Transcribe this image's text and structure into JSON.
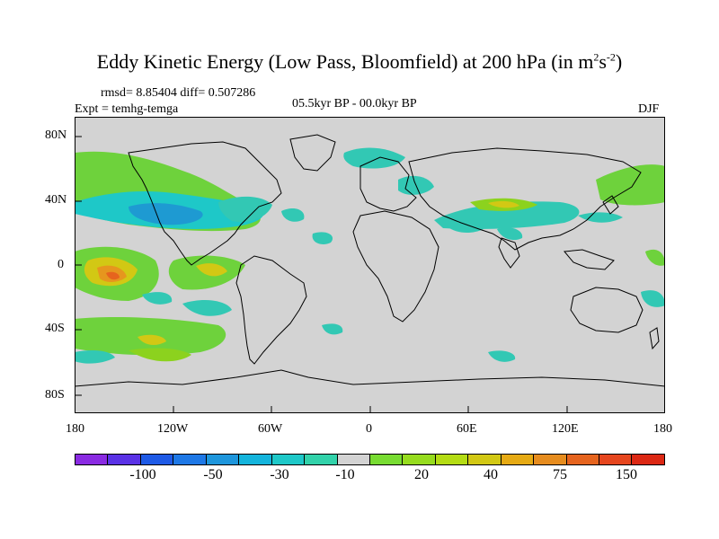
{
  "title": {
    "main": "Eddy Kinetic Energy (Low Pass, Bloomfield) at 200 hPa (in m",
    "sup1": "2",
    "mid": "s",
    "sup2": "-2",
    "end": ")"
  },
  "stats": "rmsd= 8.85404 diff= 0.507286",
  "expt": "Expt = temhg-temga",
  "period": "05.5kyr BP - 00.0kyr BP",
  "season": "DJF",
  "map": {
    "background_color": "#d3d3d3",
    "lat_labels": [
      "80N",
      "40N",
      "0",
      "40S",
      "80S"
    ],
    "lon_labels": [
      "180",
      "120W",
      "60W",
      "0",
      "60E",
      "120E",
      "180"
    ]
  },
  "colorbar": {
    "colors": [
      "#8a2be2",
      "#5a32e6",
      "#1e5ae6",
      "#1e78e6",
      "#1e96dc",
      "#14b4dc",
      "#1ec8c8",
      "#32d2aa",
      "#d3d3d3",
      "#78dc32",
      "#96dc1e",
      "#b4dc14",
      "#d2c814",
      "#e6aa14",
      "#e68c1e",
      "#e6641e",
      "#e6461e",
      "#dc2814"
    ],
    "labels": [
      "-100",
      "-50",
      "-30",
      "-10",
      "20",
      "40",
      "75",
      "150"
    ]
  },
  "palette": {
    "green_light": "#6ed23c",
    "green_mid": "#8cd21e",
    "cyan_light": "#32c8b4",
    "cyan_mid": "#1ec8c8",
    "blue_mid": "#1e9ad2",
    "yellow": "#d2c814",
    "orange": "#e6961e",
    "red_orange": "#e6641e",
    "coast": "#000000"
  }
}
